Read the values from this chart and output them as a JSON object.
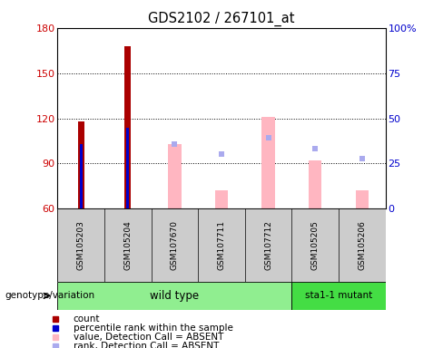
{
  "title": "GDS2102 / 267101_at",
  "samples": [
    "GSM105203",
    "GSM105204",
    "GSM107670",
    "GSM107711",
    "GSM107712",
    "GSM105205",
    "GSM105206"
  ],
  "count_values": [
    118,
    168,
    null,
    null,
    null,
    null,
    null
  ],
  "count_color": "#AA0000",
  "percentile_rank_values": [
    103,
    114,
    null,
    null,
    null,
    null,
    null
  ],
  "percentile_rank_color": "#0000CC",
  "absent_value_bars": [
    null,
    null,
    103,
    72,
    121,
    92,
    72
  ],
  "absent_value_color": "#FFB6C1",
  "absent_rank_values": [
    null,
    null,
    103,
    96,
    107,
    100,
    93
  ],
  "absent_rank_color": "#AAAAEE",
  "ylim_left": [
    60,
    180
  ],
  "ylim_right": [
    0,
    100
  ],
  "yticks_left": [
    60,
    90,
    120,
    150,
    180
  ],
  "yticks_right": [
    0,
    25,
    50,
    75,
    100
  ],
  "left_axis_color": "#CC0000",
  "right_axis_color": "#0000CC",
  "wt_color": "#90EE90",
  "mut_color": "#44DD44",
  "sample_bg_color": "#CCCCCC",
  "legend_items": [
    {
      "label": "count",
      "color": "#AA0000"
    },
    {
      "label": "percentile rank within the sample",
      "color": "#0000CC"
    },
    {
      "label": "value, Detection Call = ABSENT",
      "color": "#FFB6C1"
    },
    {
      "label": "rank, Detection Call = ABSENT",
      "color": "#AAAAEE"
    }
  ]
}
